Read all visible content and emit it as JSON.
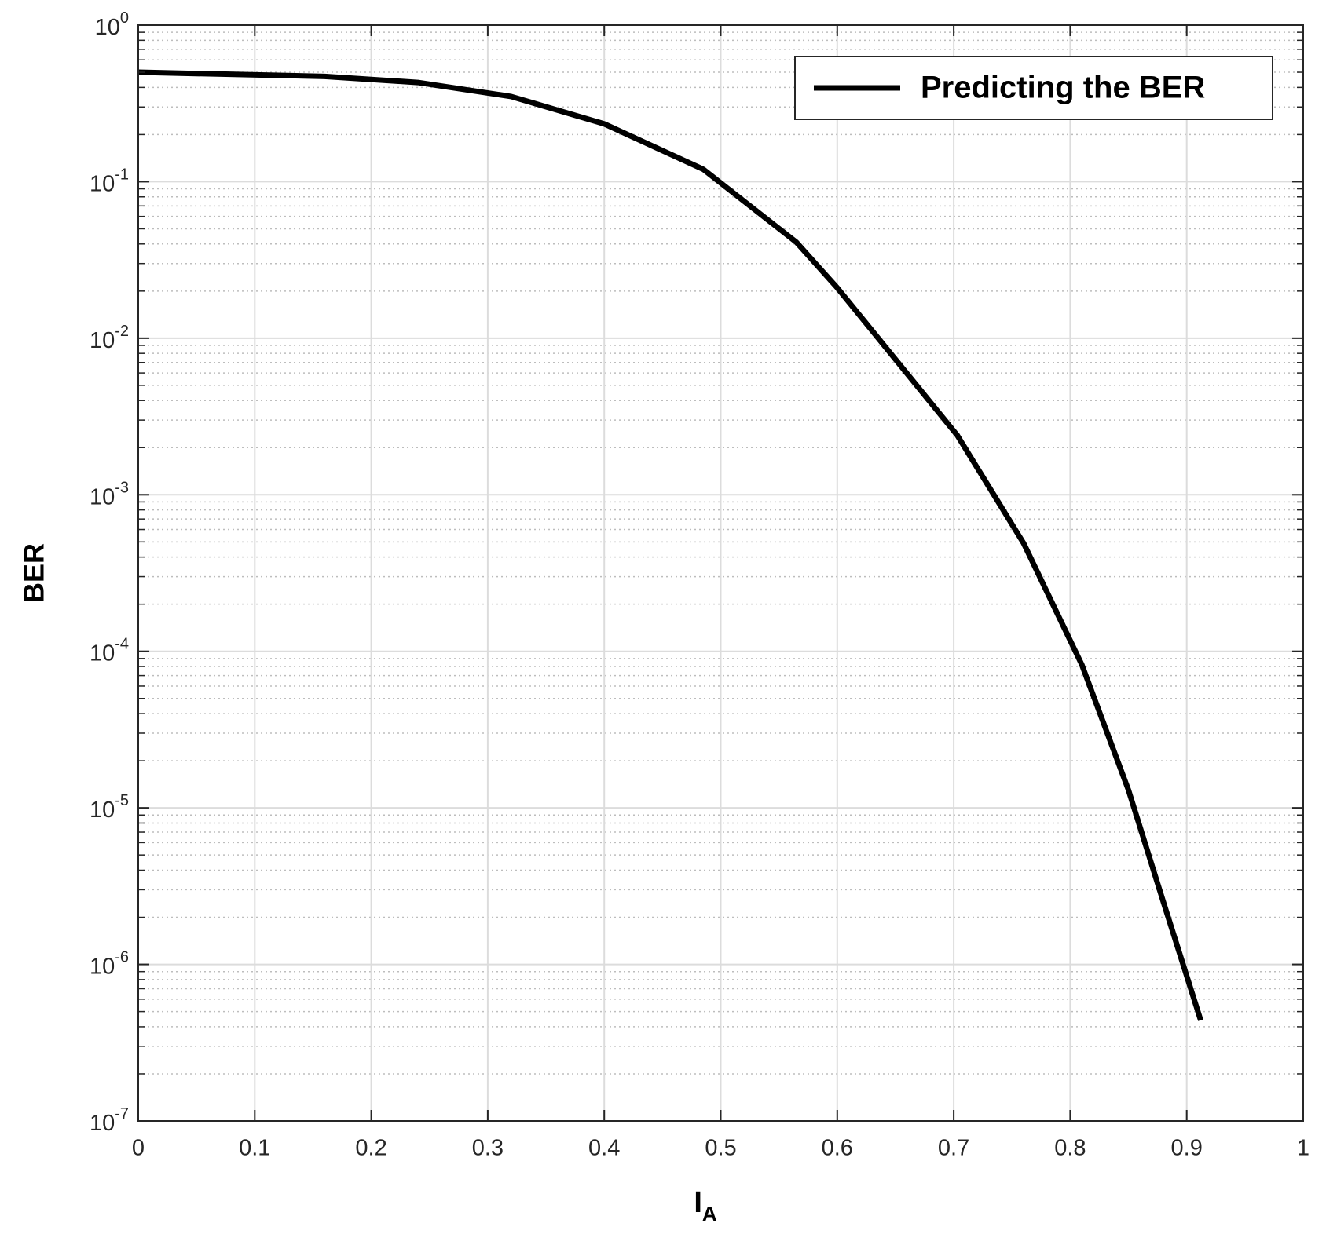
{
  "chart_data": {
    "type": "line",
    "log_y": true,
    "grid": true,
    "minor_grid": true,
    "legend_position": "upper right",
    "xlabel": {
      "text": "I",
      "subscript": "A"
    },
    "ylabel": "BER",
    "x": [
      0,
      0.16,
      0.24,
      0.32,
      0.4,
      0.485,
      0.565,
      0.6,
      0.703,
      0.76,
      0.81,
      0.85,
      0.88,
      0.912
    ],
    "series": [
      {
        "name": "Predicting the BER",
        "color": "#000000",
        "values": [
          0.5,
          0.47,
          0.43,
          0.35,
          0.234,
          0.12,
          0.041,
          0.021,
          0.0024,
          0.00049,
          8.2e-05,
          1.3e-05,
          2.5e-06,
          4.4e-07
        ]
      }
    ],
    "xlim": [
      0,
      1
    ],
    "xticks": [
      0,
      0.1,
      0.2,
      0.3,
      0.4,
      0.5,
      0.6,
      0.7,
      0.8,
      0.9,
      1
    ],
    "ylim": [
      1e-07,
      1
    ],
    "yticks": [
      {
        "value": 1e-07,
        "label": "10",
        "exponent": "-7"
      },
      {
        "value": 1e-06,
        "label": "10",
        "exponent": "-6"
      },
      {
        "value": 1e-05,
        "label": "10",
        "exponent": "-5"
      },
      {
        "value": 0.0001,
        "label": "10",
        "exponent": "-4"
      },
      {
        "value": 0.001,
        "label": "10",
        "exponent": "-3"
      },
      {
        "value": 0.01,
        "label": "10",
        "exponent": "-2"
      },
      {
        "value": 0.1,
        "label": "10",
        "exponent": "-1"
      },
      {
        "value": 1,
        "label": "10",
        "exponent": "0"
      }
    ],
    "yminorticks": [
      2e-07,
      3e-07,
      4e-07,
      5e-07,
      6e-07,
      7e-07,
      8e-07,
      9e-07,
      2e-06,
      3e-06,
      4e-06,
      5e-06,
      6e-06,
      7e-06,
      8e-06,
      9e-06,
      2e-05,
      3e-05,
      4e-05,
      5e-05,
      6e-05,
      7e-05,
      8e-05,
      9e-05,
      0.0002,
      0.0003,
      0.0004,
      0.0005,
      0.0006,
      0.0007,
      0.0008,
      0.0009,
      0.002,
      0.003,
      0.004,
      0.005,
      0.006,
      0.007,
      0.008,
      0.009,
      0.02,
      0.03,
      0.04,
      0.05,
      0.06,
      0.07,
      0.08,
      0.09,
      0.2,
      0.3,
      0.4,
      0.5,
      0.6,
      0.7,
      0.8,
      0.9
    ]
  }
}
